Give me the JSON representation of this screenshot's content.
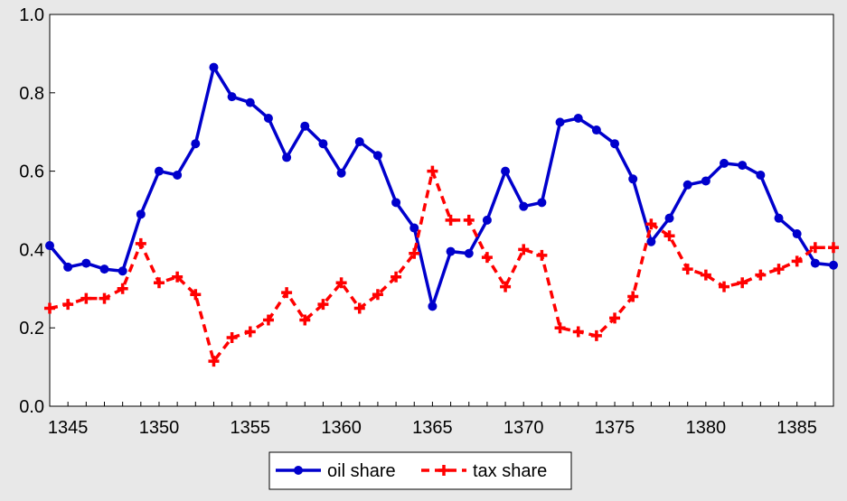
{
  "chart_data": {
    "type": "line",
    "title": "",
    "xlabel": "",
    "ylabel": "",
    "xlim": [
      1344,
      1387
    ],
    "ylim": [
      0,
      1
    ],
    "x_ticks": [
      1345,
      1350,
      1355,
      1360,
      1365,
      1370,
      1375,
      1380,
      1385
    ],
    "x_tick_labels": [
      "1345",
      "1350",
      "1355",
      "1360",
      "1365",
      "1370",
      "1375",
      "1380",
      "1385"
    ],
    "y_ticks": [
      0,
      0.2,
      0.4,
      0.6,
      0.8,
      1.0
    ],
    "y_tick_labels": [
      "0.0",
      "0.2",
      "0.4",
      "0.6",
      "0.8",
      "1.0"
    ],
    "grid": false,
    "legend_position": "bottom-center",
    "x": [
      1344,
      1345,
      1346,
      1347,
      1348,
      1349,
      1350,
      1351,
      1352,
      1353,
      1354,
      1355,
      1356,
      1357,
      1358,
      1359,
      1360,
      1361,
      1362,
      1363,
      1364,
      1365,
      1366,
      1367,
      1368,
      1369,
      1370,
      1371,
      1372,
      1373,
      1374,
      1375,
      1376,
      1377,
      1378,
      1379,
      1380,
      1381,
      1382,
      1383,
      1384,
      1385,
      1386,
      1387
    ],
    "series": [
      {
        "name": "oil share",
        "color": "#0000cc",
        "line_style": "solid",
        "marker": "circle",
        "values": [
          0.41,
          0.355,
          0.365,
          0.35,
          0.345,
          0.49,
          0.6,
          0.59,
          0.67,
          0.865,
          0.79,
          0.775,
          0.735,
          0.635,
          0.715,
          0.67,
          0.595,
          0.675,
          0.64,
          0.52,
          0.455,
          0.255,
          0.395,
          0.39,
          0.475,
          0.6,
          0.51,
          0.52,
          0.725,
          0.735,
          0.705,
          0.67,
          0.58,
          0.42,
          0.48,
          0.565,
          0.575,
          0.62,
          0.615,
          0.59,
          0.48,
          0.44,
          0.365,
          0.36
        ]
      },
      {
        "name": "tax share",
        "color": "#ff0000",
        "line_style": "dashed",
        "marker": "plus",
        "values": [
          0.25,
          0.26,
          0.275,
          0.275,
          0.3,
          0.415,
          0.315,
          0.33,
          0.285,
          0.115,
          0.175,
          0.19,
          0.22,
          0.29,
          0.22,
          0.26,
          0.315,
          0.25,
          0.285,
          0.33,
          0.39,
          0.6,
          0.475,
          0.475,
          0.38,
          0.305,
          0.4,
          0.385,
          0.2,
          0.19,
          0.18,
          0.225,
          0.28,
          0.465,
          0.435,
          0.35,
          0.335,
          0.305,
          0.315,
          0.335,
          0.35,
          0.37,
          0.405,
          0.405
        ]
      }
    ]
  }
}
